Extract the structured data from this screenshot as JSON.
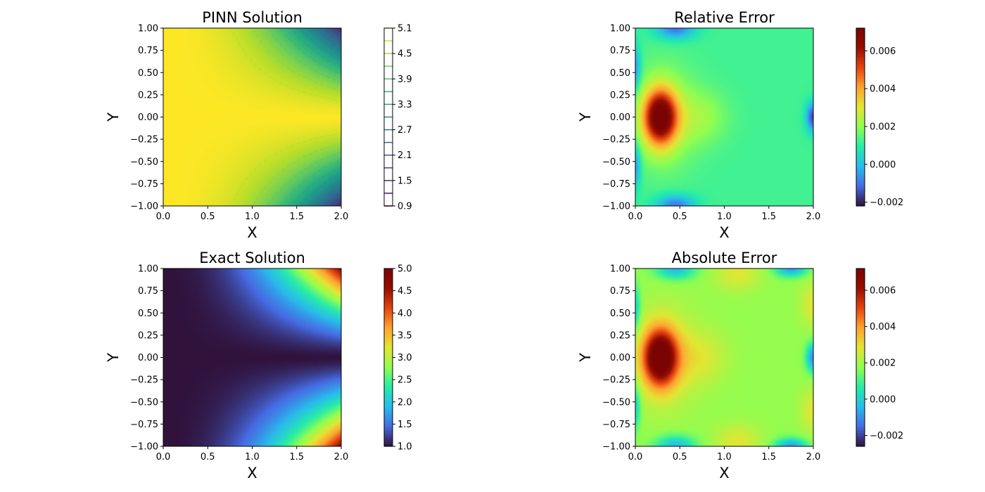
{
  "chart_data": [
    {
      "type": "heatmap",
      "title": "PINN Solution",
      "xlabel": "X",
      "ylabel": "Y",
      "xlim": [
        0.0,
        2.0
      ],
      "ylim": [
        -1.0,
        1.0
      ],
      "xticks": [
        "0.0",
        "0.5",
        "1.0",
        "1.5",
        "2.0"
      ],
      "yticks": [
        "−1.00",
        "−0.75",
        "−0.50",
        "−0.25",
        "0.00",
        "0.25",
        "0.50",
        "0.75",
        "1.00"
      ],
      "colormap": "viridis",
      "overlay": "dashed-contours",
      "colorbar": {
        "kind": "contour",
        "range": [
          0.9,
          5.1
        ],
        "ticks": [
          "0.9",
          "1.5",
          "2.1",
          "2.7",
          "3.3",
          "3.9",
          "4.5",
          "5.1"
        ]
      }
    },
    {
      "type": "heatmap",
      "title": "Relative Error",
      "xlabel": "X",
      "ylabel": "Y",
      "xlim": [
        0.0,
        2.0
      ],
      "ylim": [
        -1.0,
        1.0
      ],
      "xticks": [
        "0.0",
        "0.5",
        "1.0",
        "1.5",
        "2.0"
      ],
      "yticks": [
        "−1.00",
        "−0.75",
        "−0.50",
        "−0.25",
        "0.00",
        "0.25",
        "0.50",
        "0.75",
        "1.00"
      ],
      "colormap": "turbo",
      "colorbar": {
        "kind": "continuous",
        "range": [
          -0.0022,
          0.0072
        ],
        "ticks": [
          "−0.002",
          "0.000",
          "0.002",
          "0.004",
          "0.006"
        ],
        "tick_values": [
          -0.002,
          0.0,
          0.002,
          0.004,
          0.006
        ]
      }
    },
    {
      "type": "heatmap",
      "title": "Exact Solution",
      "xlabel": "X",
      "ylabel": "Y",
      "xlim": [
        0.0,
        2.0
      ],
      "ylim": [
        -1.0,
        1.0
      ],
      "xticks": [
        "0.0",
        "0.5",
        "1.0",
        "1.5",
        "2.0"
      ],
      "yticks": [
        "−1.00",
        "−0.75",
        "−0.50",
        "−0.25",
        "0.00",
        "0.25",
        "0.50",
        "0.75",
        "1.00"
      ],
      "colormap": "turbo",
      "colorbar": {
        "kind": "continuous",
        "range": [
          1.0,
          5.0
        ],
        "ticks": [
          "1.0",
          "1.5",
          "2.0",
          "2.5",
          "3.0",
          "3.5",
          "4.0",
          "4.5",
          "5.0"
        ],
        "tick_values": [
          1.0,
          1.5,
          2.0,
          2.5,
          3.0,
          3.5,
          4.0,
          4.5,
          5.0
        ]
      }
    },
    {
      "type": "heatmap",
      "title": "Absolute Error",
      "xlabel": "X",
      "ylabel": "Y",
      "xlim": [
        0.0,
        2.0
      ],
      "ylim": [
        -1.0,
        1.0
      ],
      "xticks": [
        "0.0",
        "0.5",
        "1.0",
        "1.5",
        "2.0"
      ],
      "yticks": [
        "−1.00",
        "−0.75",
        "−0.50",
        "−0.25",
        "0.00",
        "0.25",
        "0.50",
        "0.75",
        "1.00"
      ],
      "colormap": "turbo",
      "colorbar": {
        "kind": "continuous",
        "range": [
          -0.0026,
          0.0072
        ],
        "ticks": [
          "−0.002",
          "0.000",
          "0.002",
          "0.004",
          "0.006"
        ],
        "tick_values": [
          -0.002,
          0.0,
          0.002,
          0.004,
          0.006
        ]
      }
    }
  ]
}
